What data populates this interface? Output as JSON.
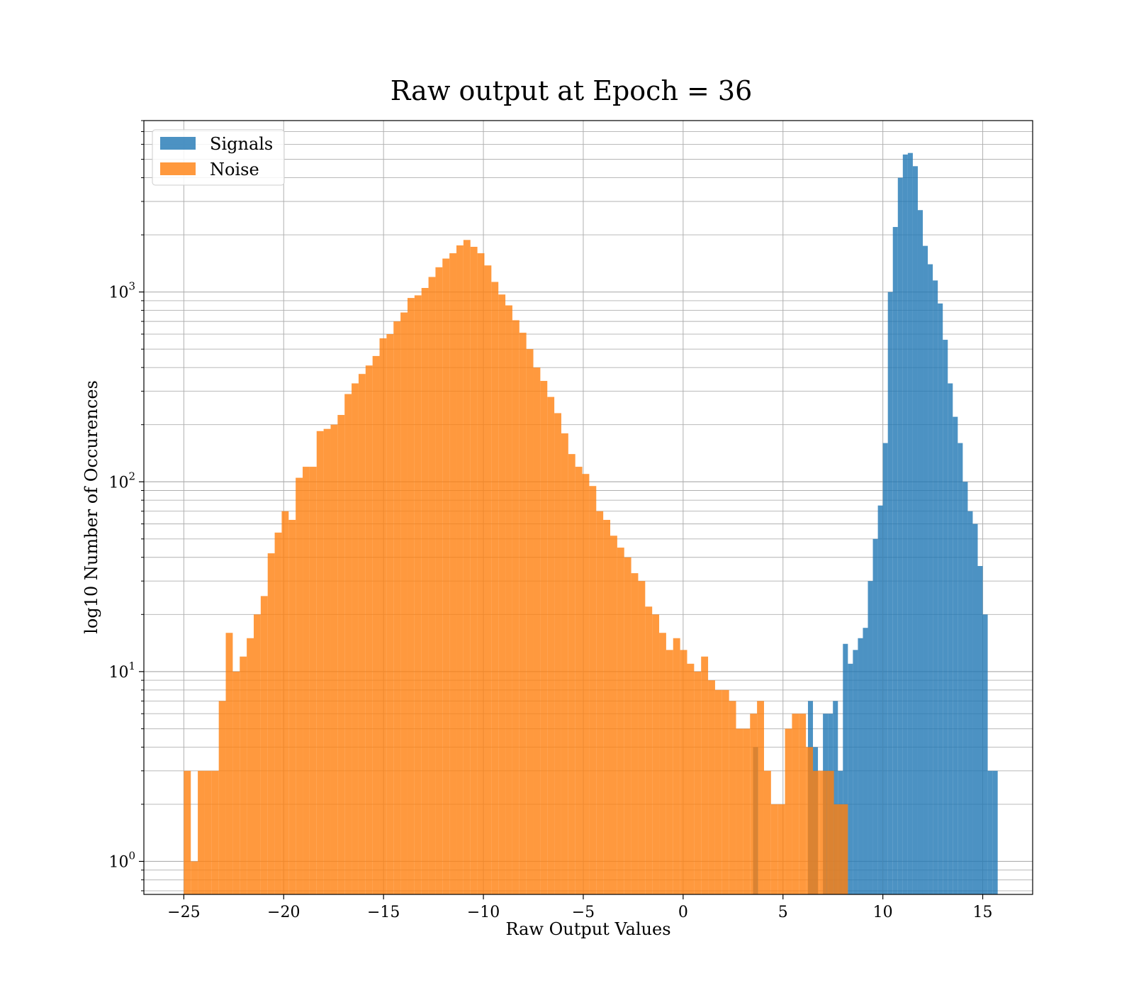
{
  "chart_data": {
    "type": "bar",
    "title": "Raw output at Epoch = 36",
    "xlabel": "Raw Output Values",
    "ylabel": "log10 Number of Occurences",
    "xlim": [
      -27,
      17.5
    ],
    "ylim": [
      0.67,
      8000
    ],
    "yscale": "log",
    "grid": true,
    "legend_position": "top-left",
    "x_ticks": [
      {
        "value": -25,
        "label": "−25"
      },
      {
        "value": -20,
        "label": "−20"
      },
      {
        "value": -15,
        "label": "−15"
      },
      {
        "value": -10,
        "label": "−10"
      },
      {
        "value": -5,
        "label": "−5"
      },
      {
        "value": 0,
        "label": "0"
      },
      {
        "value": 5,
        "label": "5"
      },
      {
        "value": 10,
        "label": "10"
      },
      {
        "value": 15,
        "label": "15"
      }
    ],
    "y_ticks": [
      {
        "value": 1,
        "base": "10",
        "exp": "0"
      },
      {
        "value": 10,
        "base": "10",
        "exp": "1"
      },
      {
        "value": 100,
        "base": "10",
        "exp": "2"
      },
      {
        "value": 1000,
        "base": "10",
        "exp": "3"
      }
    ],
    "series": [
      {
        "name": "Signals",
        "color": "#1f77b4",
        "opacity": 0.8,
        "bin_width": 0.25,
        "bins": [
          [
            3.5,
            4
          ],
          [
            6.25,
            7
          ],
          [
            6.5,
            4
          ],
          [
            7.0,
            6
          ],
          [
            7.25,
            6
          ],
          [
            7.5,
            7
          ],
          [
            7.75,
            3
          ],
          [
            8.0,
            14
          ],
          [
            8.25,
            11
          ],
          [
            8.5,
            13
          ],
          [
            8.75,
            15
          ],
          [
            9.0,
            17
          ],
          [
            9.25,
            30
          ],
          [
            9.5,
            50
          ],
          [
            9.75,
            75
          ],
          [
            10.0,
            160
          ],
          [
            10.25,
            1000
          ],
          [
            10.5,
            2200
          ],
          [
            10.75,
            4000
          ],
          [
            11.0,
            5300
          ],
          [
            11.25,
            5400
          ],
          [
            11.5,
            4600
          ],
          [
            11.75,
            2700
          ],
          [
            12.0,
            1750
          ],
          [
            12.25,
            1400
          ],
          [
            12.5,
            1150
          ],
          [
            12.75,
            870
          ],
          [
            13.0,
            560
          ],
          [
            13.25,
            330
          ],
          [
            13.5,
            220
          ],
          [
            13.75,
            160
          ],
          [
            14.0,
            100
          ],
          [
            14.25,
            70
          ],
          [
            14.5,
            60
          ],
          [
            14.75,
            36
          ],
          [
            15.0,
            20
          ],
          [
            15.25,
            3
          ],
          [
            15.5,
            3
          ]
        ]
      },
      {
        "name": "Noise",
        "color": "#ff7f0e",
        "opacity": 0.8,
        "bin_width": 0.35,
        "bins": [
          [
            -25.0,
            3
          ],
          [
            -24.65,
            1
          ],
          [
            -24.3,
            3
          ],
          [
            -23.95,
            3
          ],
          [
            -23.6,
            3
          ],
          [
            -23.25,
            7
          ],
          [
            -22.9,
            16
          ],
          [
            -22.55,
            10
          ],
          [
            -22.2,
            12
          ],
          [
            -21.85,
            15
          ],
          [
            -21.5,
            20
          ],
          [
            -21.15,
            25
          ],
          [
            -20.8,
            42
          ],
          [
            -20.45,
            54
          ],
          [
            -20.1,
            70
          ],
          [
            -19.75,
            63
          ],
          [
            -19.4,
            105
          ],
          [
            -19.05,
            120
          ],
          [
            -18.7,
            120
          ],
          [
            -18.35,
            185
          ],
          [
            -18.0,
            190
          ],
          [
            -17.65,
            200
          ],
          [
            -17.3,
            225
          ],
          [
            -16.95,
            290
          ],
          [
            -16.6,
            330
          ],
          [
            -16.25,
            370
          ],
          [
            -15.9,
            410
          ],
          [
            -15.55,
            460
          ],
          [
            -15.2,
            570
          ],
          [
            -14.85,
            600
          ],
          [
            -14.5,
            700
          ],
          [
            -14.15,
            780
          ],
          [
            -13.8,
            930
          ],
          [
            -13.45,
            960
          ],
          [
            -13.1,
            1050
          ],
          [
            -12.75,
            1200
          ],
          [
            -12.4,
            1350
          ],
          [
            -12.05,
            1500
          ],
          [
            -11.7,
            1600
          ],
          [
            -11.35,
            1760
          ],
          [
            -11.0,
            1880
          ],
          [
            -10.65,
            1730
          ],
          [
            -10.3,
            1600
          ],
          [
            -9.95,
            1380
          ],
          [
            -9.6,
            1130
          ],
          [
            -9.25,
            970
          ],
          [
            -8.9,
            850
          ],
          [
            -8.55,
            710
          ],
          [
            -8.2,
            610
          ],
          [
            -7.85,
            500
          ],
          [
            -7.5,
            400
          ],
          [
            -7.15,
            340
          ],
          [
            -6.8,
            280
          ],
          [
            -6.45,
            230
          ],
          [
            -6.1,
            180
          ],
          [
            -5.75,
            140
          ],
          [
            -5.4,
            120
          ],
          [
            -5.05,
            110
          ],
          [
            -4.7,
            95
          ],
          [
            -4.35,
            70
          ],
          [
            -4.0,
            63
          ],
          [
            -3.65,
            52
          ],
          [
            -3.3,
            45
          ],
          [
            -2.95,
            40
          ],
          [
            -2.6,
            33
          ],
          [
            -2.25,
            30
          ],
          [
            -1.9,
            22
          ],
          [
            -1.55,
            20
          ],
          [
            -1.2,
            16
          ],
          [
            -0.85,
            13
          ],
          [
            -0.5,
            15
          ],
          [
            -0.15,
            13
          ],
          [
            0.2,
            11
          ],
          [
            0.55,
            10
          ],
          [
            0.9,
            12
          ],
          [
            1.25,
            9
          ],
          [
            1.6,
            8
          ],
          [
            1.95,
            8
          ],
          [
            2.3,
            7
          ],
          [
            2.65,
            5
          ],
          [
            3.0,
            5
          ],
          [
            3.35,
            6
          ],
          [
            3.7,
            7
          ],
          [
            4.05,
            3
          ],
          [
            4.4,
            2
          ],
          [
            4.75,
            2
          ],
          [
            5.1,
            5
          ],
          [
            5.45,
            6
          ],
          [
            5.8,
            6
          ],
          [
            6.15,
            4
          ],
          [
            6.5,
            3
          ],
          [
            6.85,
            3
          ],
          [
            7.2,
            3
          ],
          [
            7.55,
            2
          ],
          [
            7.9,
            2
          ]
        ]
      }
    ]
  }
}
